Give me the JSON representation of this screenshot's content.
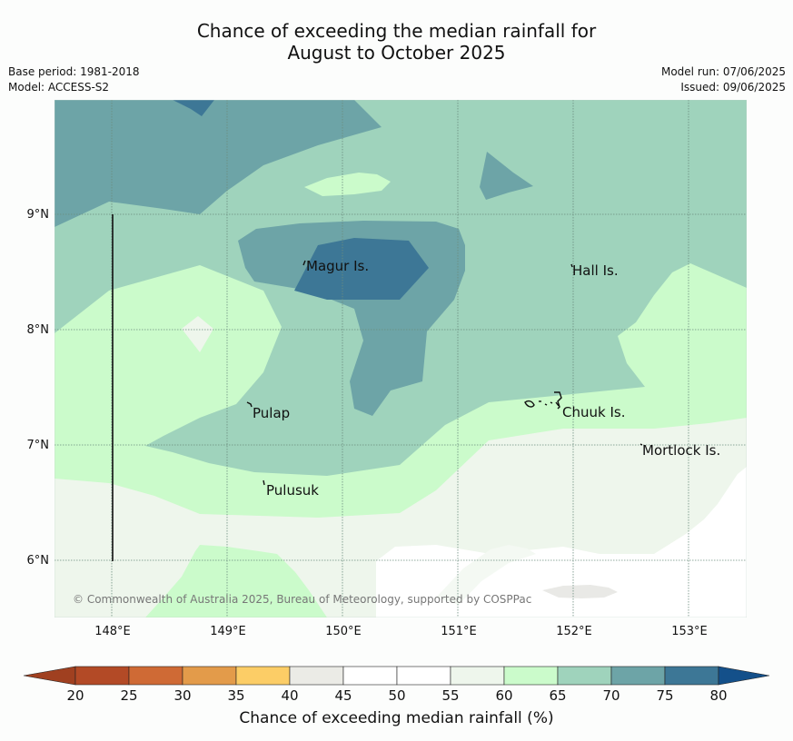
{
  "title_line1": "Chance of exceeding the median rainfall for",
  "title_line2": "August to October 2025",
  "base_period": "Base period: 1981-2018",
  "model": "Model: ACCESS-S2",
  "model_run": "Model run: 07/06/2025",
  "issued": "Issued: 09/06/2025",
  "lat_labels": [
    "9°N",
    "8°N",
    "7°N",
    "6°N"
  ],
  "lon_labels": [
    "148°E",
    "149°E",
    "150°E",
    "151°E",
    "152°E",
    "153°E"
  ],
  "places": [
    {
      "name": "Magur Is."
    },
    {
      "name": "Hall Is."
    },
    {
      "name": "Pulap"
    },
    {
      "name": "Chuuk Is."
    },
    {
      "name": "Mortlock Is."
    },
    {
      "name": "Pulusuk"
    }
  ],
  "copyright": "© Commonwealth of Australia 2025, Bureau of Meteorology, supported by COSPPac",
  "colorbar": {
    "title": "Chance of exceeding median rainfall (%)",
    "ticks": [
      "20",
      "25",
      "30",
      "35",
      "40",
      "45",
      "50",
      "55",
      "60",
      "65",
      "70",
      "75",
      "80"
    ],
    "colors": [
      "#b34a26",
      "#cf6a35",
      "#e39b4a",
      "#fccd66",
      "#ebebe6",
      "#ffffff",
      "#ffffff",
      "#eef6ec",
      "#cbfbcb",
      "#9fd3bc",
      "#6da4a7",
      "#3d7796"
    ],
    "under_color": "#a04020",
    "over_color": "#14508a"
  }
}
